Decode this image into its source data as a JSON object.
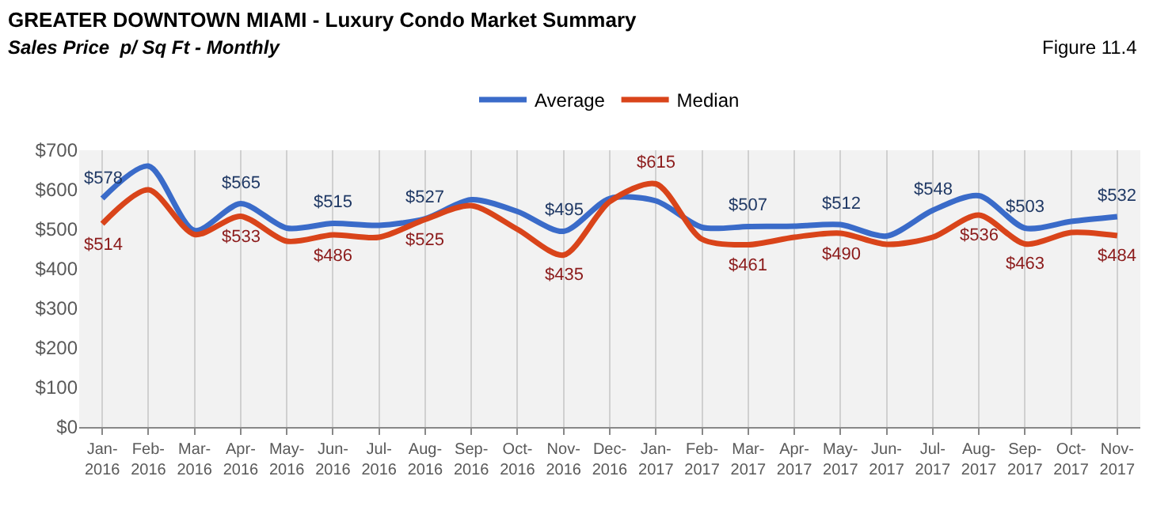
{
  "chart_data": {
    "type": "line",
    "title": "GREATER DOWNTOWN MIAMI - Luxury Condo Market Summary",
    "subtitle": "Sales Price  p/ Sq Ft - Monthly",
    "annotations": [
      "Figure 11.4"
    ],
    "categories": [
      "Jan-2016",
      "Feb-2016",
      "Mar-2016",
      "Apr-2016",
      "May-2016",
      "Jun-2016",
      "Jul-2016",
      "Aug-2016",
      "Sep-2016",
      "Oct-2016",
      "Nov-2016",
      "Dec-2016",
      "Jan-2017",
      "Feb-2017",
      "Mar-2017",
      "Apr-2017",
      "May-2017",
      "Jun-2017",
      "Jul-2017",
      "Aug-2017",
      "Sep-2017",
      "Oct-2017",
      "Nov-2017"
    ],
    "series": [
      {
        "name": "Average",
        "color": "#3a6bc9",
        "values": [
          578,
          660,
          497,
          565,
          503,
          515,
          510,
          527,
          575,
          545,
          495,
          578,
          572,
          505,
          507,
          508,
          512,
          483,
          548,
          585,
          503,
          520,
          532
        ],
        "value_labels": [
          "$578",
          null,
          null,
          "$565",
          null,
          "$515",
          null,
          "$527",
          null,
          null,
          "$495",
          null,
          null,
          null,
          "$507",
          null,
          "$512",
          null,
          "$548",
          null,
          "$503",
          null,
          "$532"
        ]
      },
      {
        "name": "Median",
        "color": "#d9441a",
        "values": [
          514,
          600,
          487,
          533,
          470,
          486,
          480,
          525,
          560,
          500,
          435,
          570,
          615,
          475,
          461,
          480,
          490,
          462,
          480,
          536,
          463,
          492,
          484
        ],
        "value_labels": [
          "$514",
          null,
          null,
          "$533",
          null,
          "$486",
          null,
          "$525",
          null,
          null,
          "$435",
          null,
          "$615",
          null,
          "$461",
          null,
          "$490",
          null,
          null,
          "$536",
          "$463",
          null,
          "$484"
        ]
      }
    ],
    "ylim": [
      0,
      700
    ],
    "yticks": [
      {
        "value": 0,
        "label": "$0"
      },
      {
        "value": 100,
        "label": "$100"
      },
      {
        "value": 200,
        "label": "$200"
      },
      {
        "value": 300,
        "label": "$300"
      },
      {
        "value": 400,
        "label": "$400"
      },
      {
        "value": 500,
        "label": "$500"
      },
      {
        "value": 600,
        "label": "$600"
      },
      {
        "value": 700,
        "label": "$700"
      }
    ],
    "grid": "x",
    "legend": "top",
    "marker": "none",
    "line_style": "solid"
  }
}
